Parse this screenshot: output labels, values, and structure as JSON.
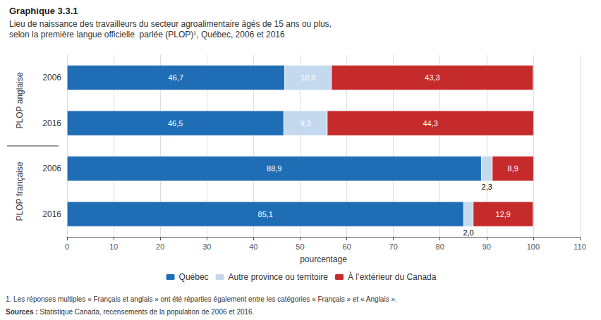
{
  "chart_data": {
    "type": "bar",
    "orientation": "horizontal",
    "stacked": true,
    "title": "Graphique 3.3.1",
    "subtitle": [
      "Lieu de naissance des travailleurs du secteur agroalimentaire âgés de 15 ans ou plus,",
      "selon la première langue officielle  parlée (PLOP)¹, Québec, 2006 et 2016"
    ],
    "categories": [
      "2006",
      "2016",
      "2006",
      "2016"
    ],
    "category_groups": [
      "PLOP anglaise",
      "PLOP anglaise",
      "PLOP française",
      "PLOP française"
    ],
    "series": [
      {
        "name": "Québec",
        "color": "#1F6EB5",
        "values": [
          46.7,
          46.5,
          88.9,
          85.1
        ],
        "value_labels": [
          "46,7",
          "46,5",
          "88,9",
          "85,1"
        ]
      },
      {
        "name": "Autre province ou territoire",
        "color": "#C5D9EE",
        "values": [
          10.0,
          9.3,
          2.3,
          2.0
        ],
        "value_labels": [
          "10,0",
          "9,3",
          "2,3",
          "2,0"
        ]
      },
      {
        "name": "À l’extérieur du Canada",
        "color": "#C62B2B",
        "values": [
          43.3,
          44.3,
          8.9,
          12.9
        ],
        "value_labels": [
          "43,3",
          "44,3",
          "8,9",
          "12,9"
        ]
      }
    ],
    "data_labels": true,
    "xlabel": "pourcentage",
    "xlim": [
      0,
      110
    ],
    "xticks": [
      0,
      10,
      20,
      30,
      40,
      50,
      60,
      70,
      80,
      90,
      100,
      110
    ],
    "grid": true,
    "legend": "bottom",
    "notes": [
      "1. Les réponses multiples « Français et anglais » ont été réparties également entre les catégories « Français » et « Anglais »."
    ],
    "source": {
      "label": "Sources :",
      "text": " Statistique Canada, recensements de la population de 2006 et 2016."
    }
  }
}
